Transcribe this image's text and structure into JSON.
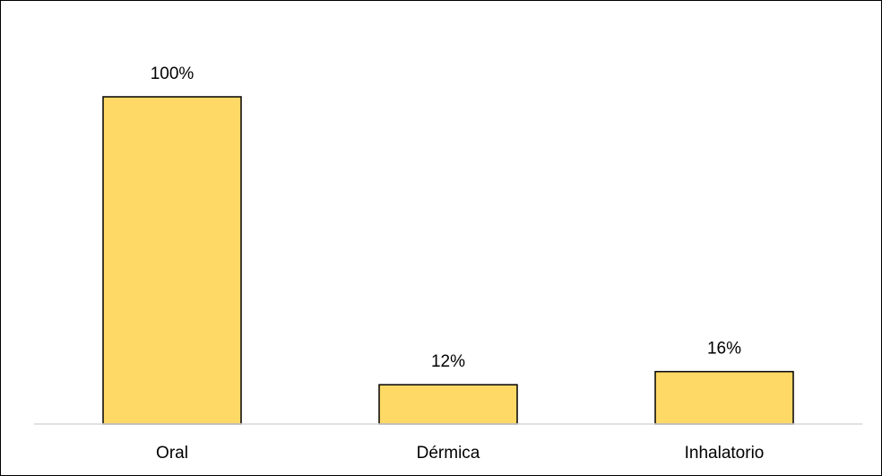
{
  "chart_data": {
    "type": "bar",
    "categories": [
      "Oral",
      "Dérmica",
      "Inhalatorio"
    ],
    "values": [
      100,
      12,
      16
    ],
    "value_labels": [
      "100%",
      "12%",
      "16%"
    ],
    "title": "",
    "xlabel": "",
    "ylabel": "",
    "ylim": [
      0,
      100
    ],
    "grid": false,
    "legend": "none",
    "bar_color": "#FFD966",
    "bar_border_color": "#000000",
    "axis_color": "#D9D9D9"
  }
}
